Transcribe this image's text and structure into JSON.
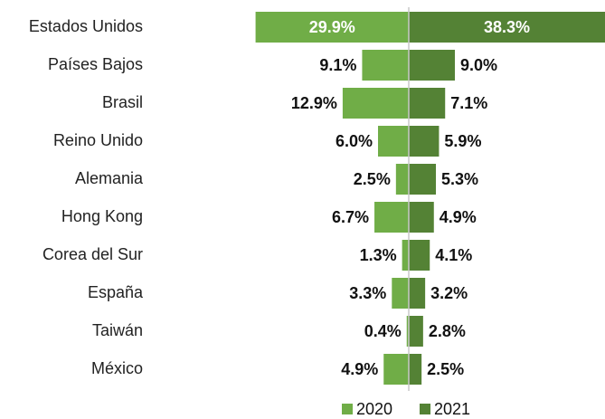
{
  "chart_data": {
    "type": "butterfly",
    "categories": [
      "Estados Unidos",
      "Países Bajos",
      "Brasil",
      "Reino Unido",
      "Alemania",
      "Hong Kong",
      "Corea del Sur",
      "España",
      "Taiwán",
      "México"
    ],
    "series": [
      {
        "name": "2020",
        "color": "#70ad47",
        "side": "left",
        "values": [
          29.9,
          9.1,
          12.9,
          6.0,
          2.5,
          6.7,
          1.3,
          3.3,
          0.4,
          4.9
        ],
        "value_labels": [
          "29.9%",
          "9.1%",
          "12.9%",
          "6.0%",
          "2.5%",
          "6.7%",
          "1.3%",
          "3.3%",
          "0.4%",
          "4.9%"
        ]
      },
      {
        "name": "2021",
        "color": "#548235",
        "side": "right",
        "values": [
          38.3,
          9.0,
          7.1,
          5.9,
          5.3,
          4.9,
          4.1,
          3.2,
          2.8,
          2.5
        ],
        "value_labels": [
          "38.3%",
          "9.0%",
          "7.1%",
          "5.9%",
          "5.3%",
          "4.9%",
          "4.1%",
          "3.2%",
          "2.8%",
          "2.5%"
        ]
      }
    ],
    "legend": "bottom"
  }
}
